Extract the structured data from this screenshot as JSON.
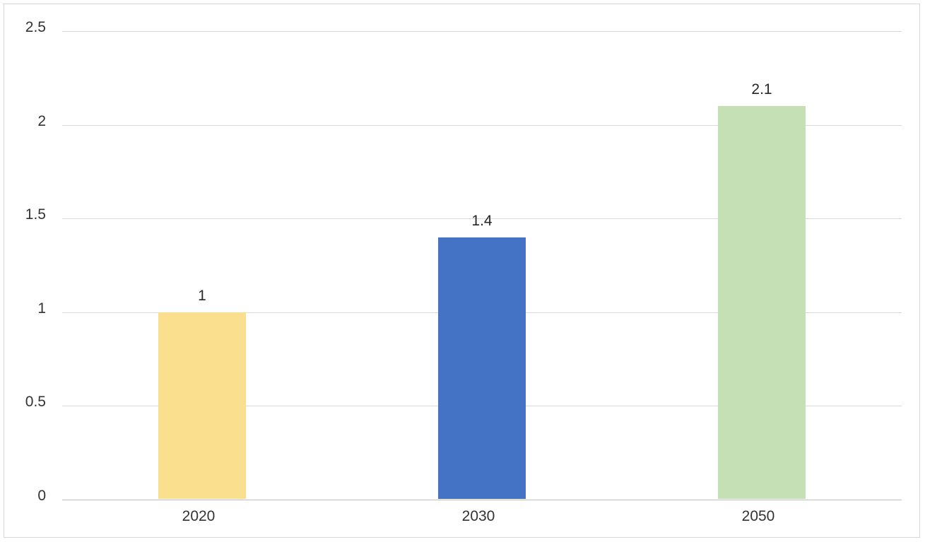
{
  "chart_data": {
    "type": "bar",
    "title": "",
    "xlabel": "",
    "ylabel": "",
    "categories": [
      "2020",
      "2030",
      "2050"
    ],
    "values": [
      1,
      1.4,
      2.1
    ],
    "data_labels": [
      "1",
      "1.4",
      "2.1"
    ],
    "bar_colors": [
      "#fae08e",
      "#4472c4",
      "#c5e0b4"
    ],
    "ylim": [
      0,
      2.5
    ],
    "ytick_step": 0.5,
    "ytick_labels": [
      "0",
      "0.5",
      "1",
      "1.5",
      "2",
      "2.5"
    ],
    "grid": true,
    "legend": null,
    "colors": {
      "gridline": "#d9d9d9",
      "axis_line": "#bfbfbf",
      "text": "#333333",
      "data_label_text": "#262626",
      "background": "#ffffff",
      "frame_border": "#d6d6d6"
    }
  }
}
